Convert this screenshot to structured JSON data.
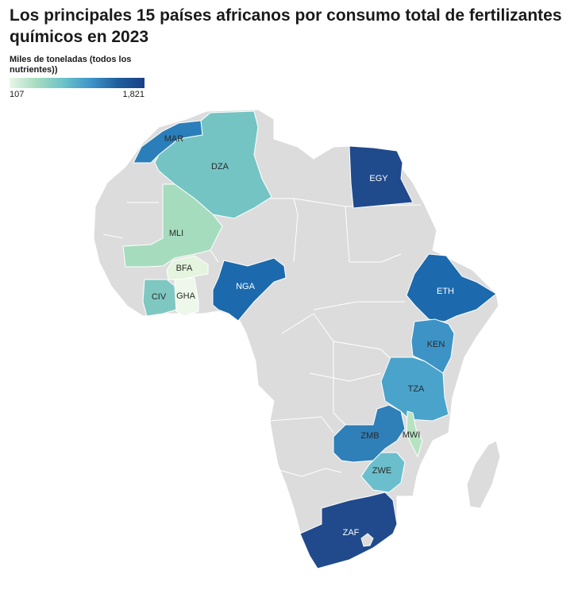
{
  "title": "Los principales 15 países africanos por consumo total de fertilizantes químicos en 2023",
  "legend": {
    "title": "Miles de toneladas (todos los nutrientes))",
    "min_label": "107",
    "max_label": "1,821"
  },
  "chart_data": {
    "type": "choropleth",
    "region": "Africa",
    "scale": {
      "min": 107,
      "max": 1821,
      "colors": [
        "#e9f6e6",
        "#a6dcc0",
        "#6bc3c8",
        "#3f95c9",
        "#1f5f9e",
        "#1b3f87"
      ]
    },
    "countries": [
      {
        "code": "MAR",
        "color": "#2a7fba"
      },
      {
        "code": "DZA",
        "color": "#74c4c4"
      },
      {
        "code": "EGY",
        "color": "#1f4a8c"
      },
      {
        "code": "MLI",
        "color": "#a6dcbe"
      },
      {
        "code": "BFA",
        "color": "#e4f4de"
      },
      {
        "code": "CIV",
        "color": "#7fc8c2"
      },
      {
        "code": "GHA",
        "color": "#eef8ea"
      },
      {
        "code": "NGA",
        "color": "#1c6aad"
      },
      {
        "code": "ETH",
        "color": "#1c6aad"
      },
      {
        "code": "KEN",
        "color": "#3d93c6"
      },
      {
        "code": "TZA",
        "color": "#4aa3cb"
      },
      {
        "code": "ZMB",
        "color": "#2f7fb8"
      },
      {
        "code": "MWI",
        "color": "#b8e3c2"
      },
      {
        "code": "ZWE",
        "color": "#6bbfcc"
      },
      {
        "code": "ZAF",
        "color": "#204a8c"
      }
    ]
  }
}
